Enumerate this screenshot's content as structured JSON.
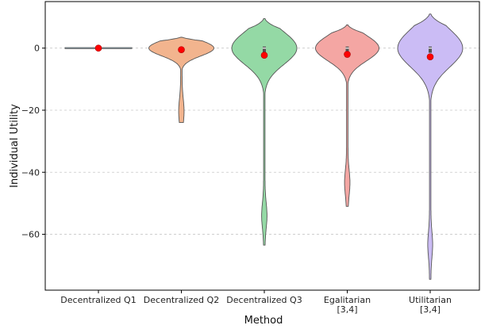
{
  "chart_data": {
    "type": "violin",
    "xlabel": "Method",
    "ylabel": "Individual Utility",
    "ylim": [
      -78,
      15
    ],
    "y_ticks": [
      0,
      -20,
      -40,
      -60
    ],
    "y_tick_labels": [
      "0",
      "−20",
      "−40",
      "−60"
    ],
    "grid": "horizontal-dashed",
    "categories": [
      {
        "label_lines": [
          "Decentralized Q1"
        ],
        "color": "#9ecae1",
        "mean": 0.0,
        "median": 0.0,
        "q1": -0.1,
        "q3": 0.1,
        "min": -0.3,
        "max": 0.3
      },
      {
        "label_lines": [
          "Decentralized Q2"
        ],
        "color": "#f2b48e",
        "mean": -0.5,
        "median": 0.0,
        "q1": -0.5,
        "q3": 0.3,
        "min": -24,
        "max": 3.5
      },
      {
        "label_lines": [
          "Decentralized Q3"
        ],
        "color": "#94d9a5",
        "mean": -2.3,
        "median": 0.0,
        "q1": -1.5,
        "q3": 0.5,
        "min": -63.5,
        "max": 9.5
      },
      {
        "label_lines": [
          "Egalitarian",
          "[3,4]"
        ],
        "color": "#f4a6a3",
        "mean": -2.0,
        "median": 0.0,
        "q1": -1.2,
        "q3": 0.5,
        "min": -51,
        "max": 7.5
      },
      {
        "label_lines": [
          "Utilitarian",
          "[3,4]"
        ],
        "color": "#cbbcf5",
        "mean": -2.8,
        "median": 0.0,
        "q1": -1.5,
        "q3": 0.5,
        "min": -74.5,
        "max": 11
      }
    ]
  }
}
